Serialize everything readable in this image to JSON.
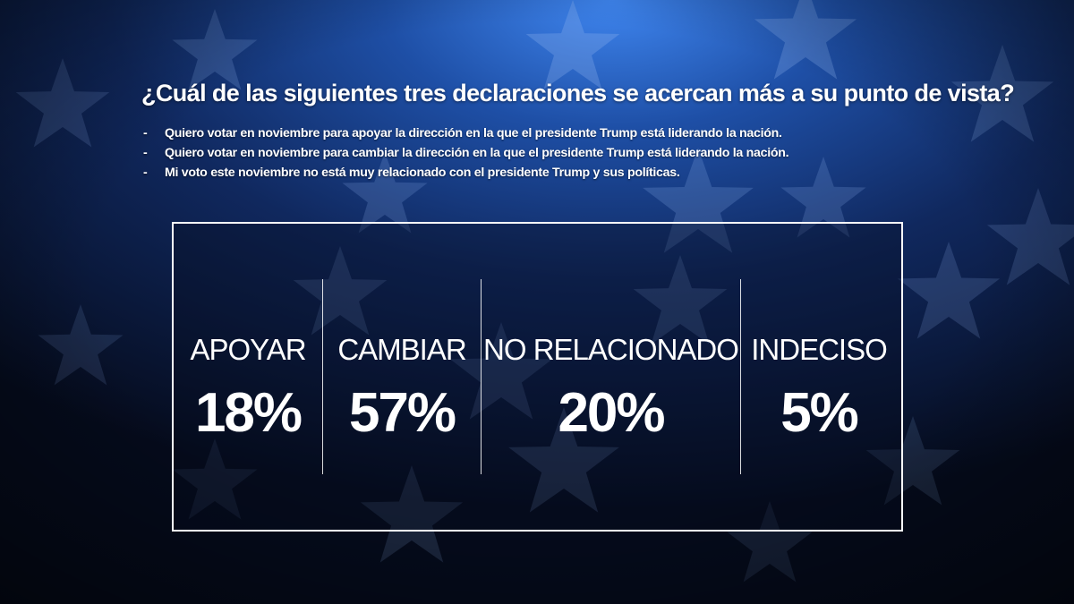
{
  "question": "¿Cuál de las siguientes tres declaraciones se acercan más a su punto de vista?",
  "options": [
    {
      "bullet": "-",
      "text": "Quiero votar en noviembre para apoyar la dirección en la que el presidente Trump está liderando la nación."
    },
    {
      "bullet": "-",
      "text": "Quiero votar en noviembre para cambiar la dirección en la que el presidente Trump está liderando la nación."
    },
    {
      "bullet": "-",
      "text": "Mi voto este noviembre no está muy relacionado con el presidente Trump y sus políticas."
    }
  ],
  "results": [
    {
      "label": "APOYAR",
      "value": "18%"
    },
    {
      "label": "CAMBIAR",
      "value": "57%"
    },
    {
      "label": "NO RELACIONADO",
      "value": "20%"
    },
    {
      "label": "INDECISO",
      "value": "5%"
    }
  ],
  "colors": {
    "background_dark": "#0a1633",
    "background_glow": "#2f6fd6",
    "text": "#ffffff",
    "box_border": "#ffffff"
  },
  "background_motif": "star-icon"
}
